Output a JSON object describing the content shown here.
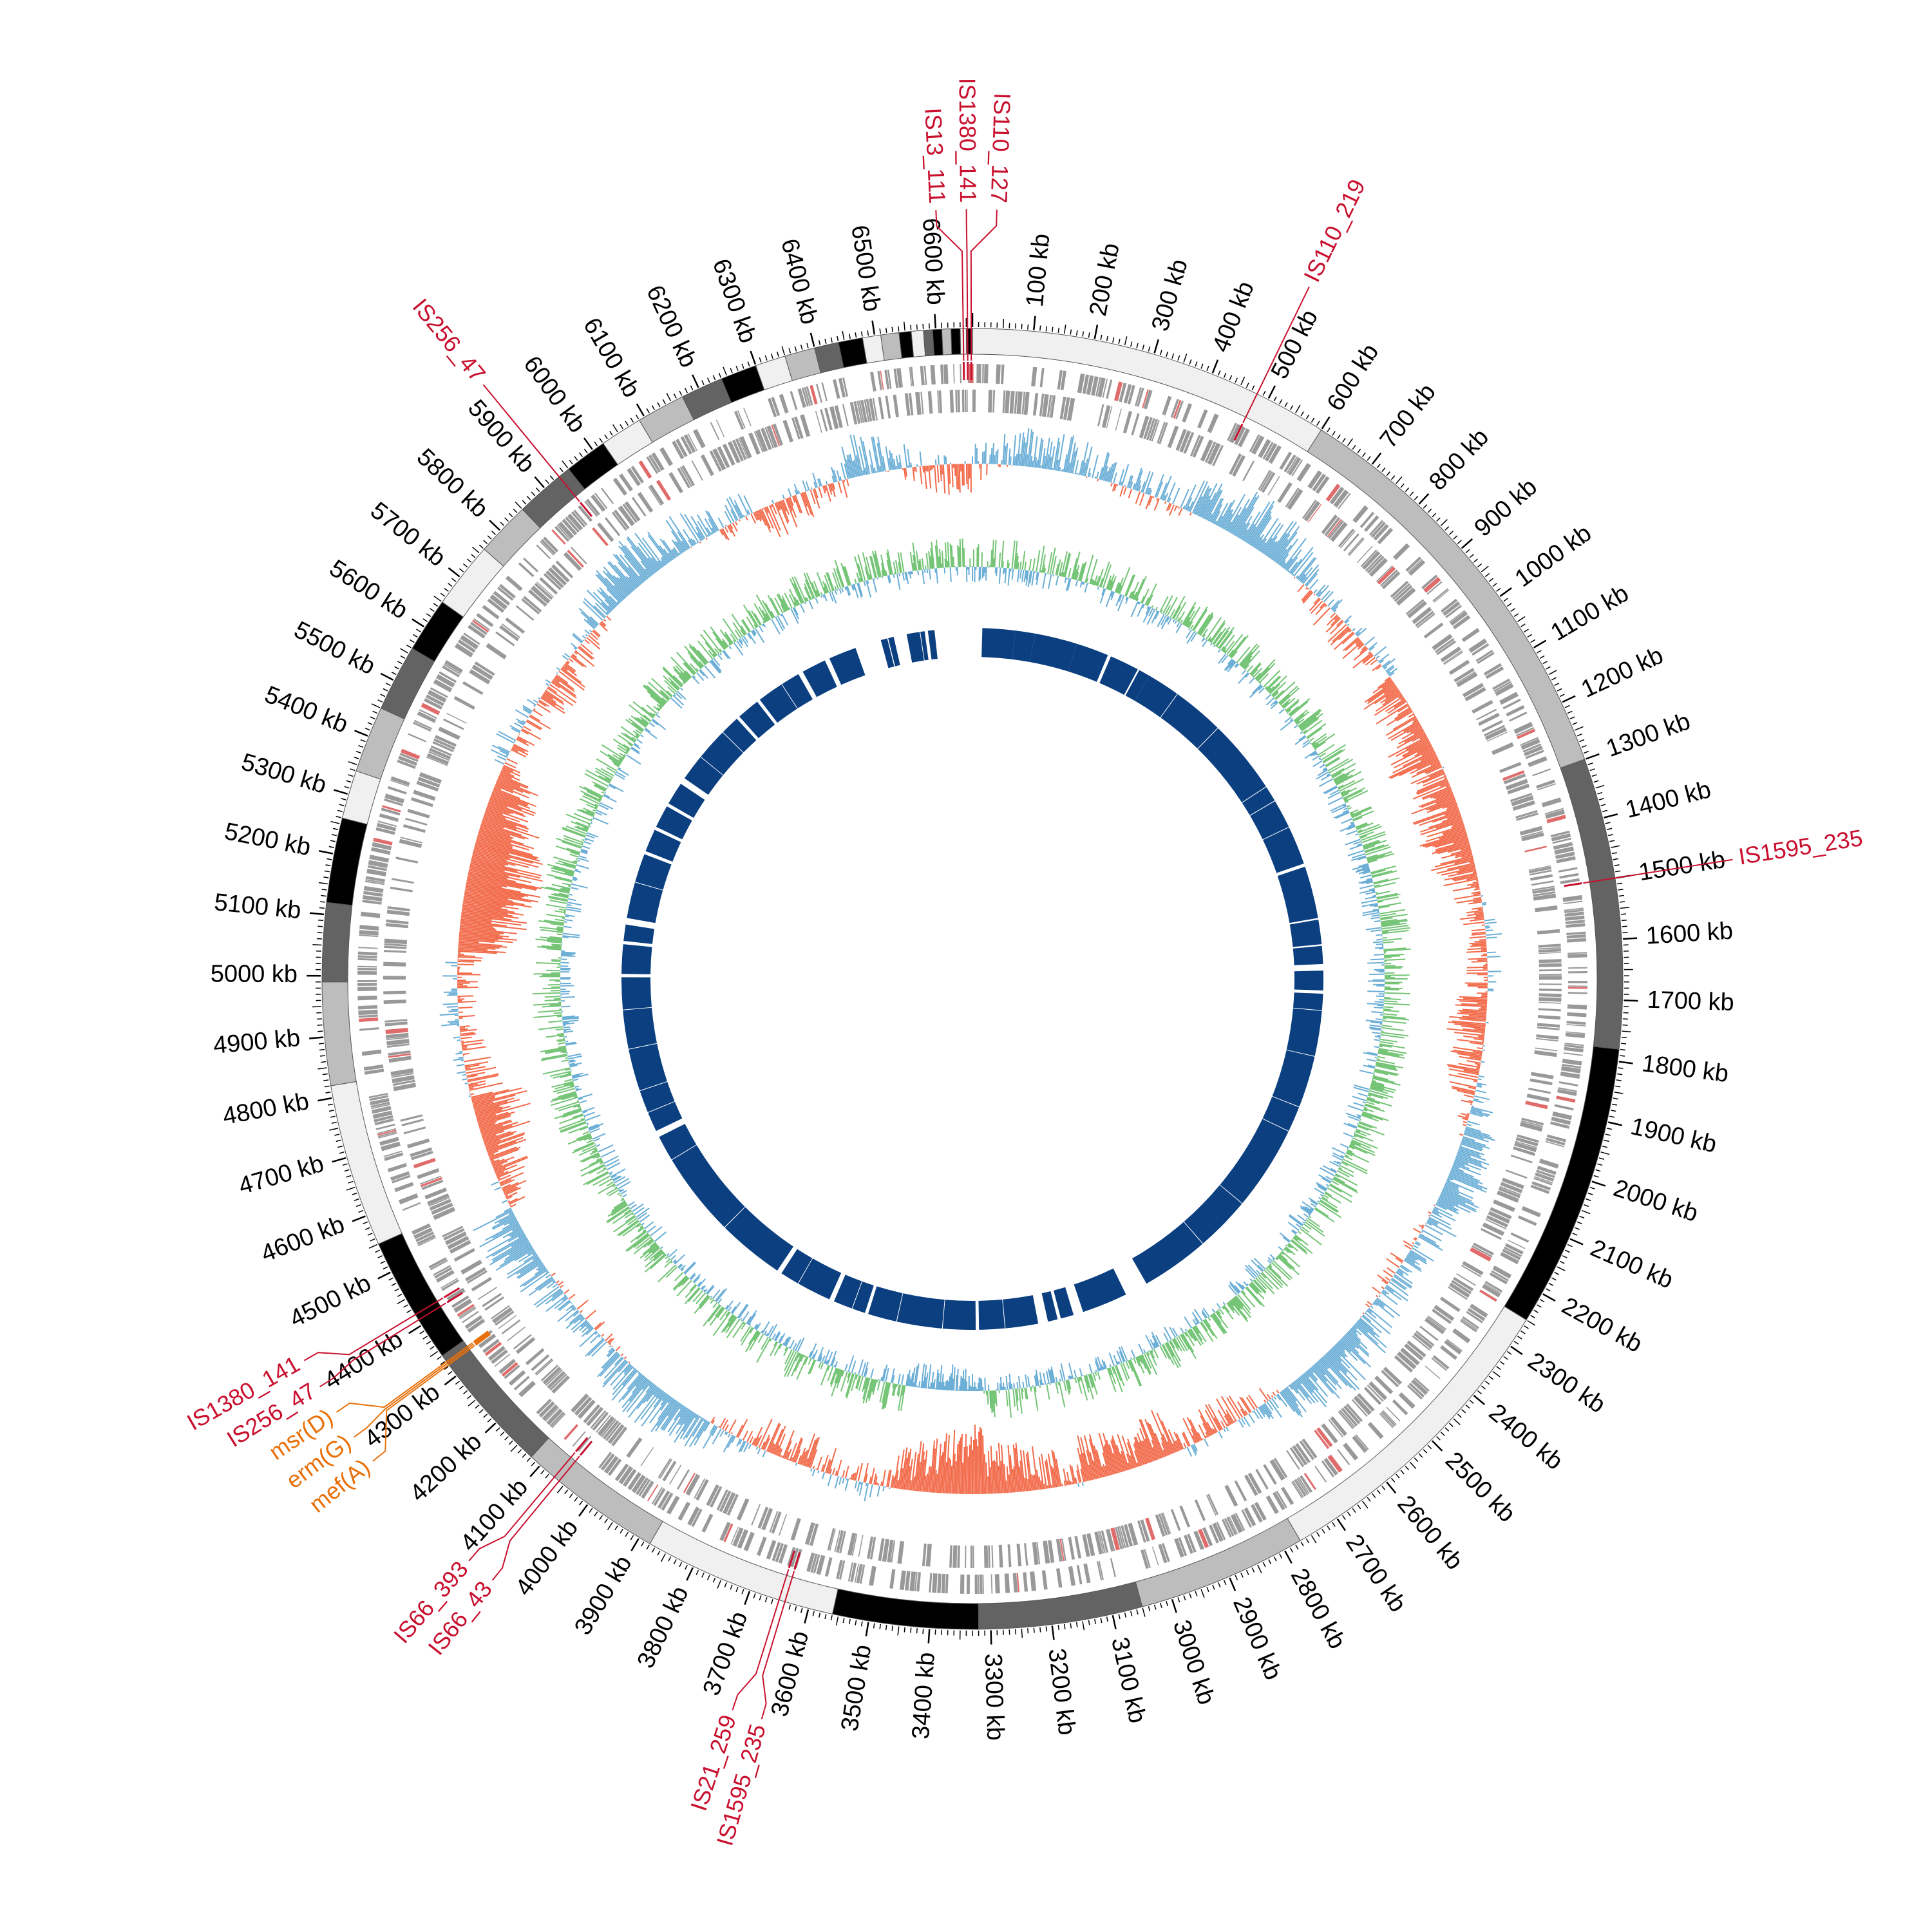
{
  "genome": {
    "length_kb": 6660,
    "tick_step_kb": 100,
    "tick_unit": "kb"
  },
  "colors": {
    "is_element": "#c8102e",
    "resistance_gene": "#e8700a",
    "gc_content_positive": "#6baed6",
    "gc_content_negative": "#f26a4a",
    "gc_skew_positive": "#74c476",
    "gc_skew_negative": "#6baed6",
    "homology_blocks": "#0b3f80",
    "cds_features": "#999999",
    "contig_shades": [
      "#f0f0f0",
      "#bdbdbd",
      "#636363",
      "#000000"
    ]
  },
  "contigs": [
    {
      "start": 0,
      "end": 600,
      "shade": 0
    },
    {
      "start": 600,
      "end": 1300,
      "shade": 1
    },
    {
      "start": 1300,
      "end": 1780,
      "shade": 2
    },
    {
      "start": 1780,
      "end": 2250,
      "shade": 3
    },
    {
      "start": 2250,
      "end": 2770,
      "shade": 0
    },
    {
      "start": 2770,
      "end": 3050,
      "shade": 1
    },
    {
      "start": 3050,
      "end": 3320,
      "shade": 2
    },
    {
      "start": 3320,
      "end": 3560,
      "shade": 3
    },
    {
      "start": 3560,
      "end": 3880,
      "shade": 0
    },
    {
      "start": 3880,
      "end": 4120,
      "shade": 1
    },
    {
      "start": 4120,
      "end": 4340,
      "shade": 2
    },
    {
      "start": 4340,
      "end": 4550,
      "shade": 3
    },
    {
      "start": 4550,
      "end": 4820,
      "shade": 0
    },
    {
      "start": 4820,
      "end": 4990,
      "shade": 1
    },
    {
      "start": 4990,
      "end": 5120,
      "shade": 2
    },
    {
      "start": 5120,
      "end": 5260,
      "shade": 3
    },
    {
      "start": 5260,
      "end": 5340,
      "shade": 0
    },
    {
      "start": 5340,
      "end": 5450,
      "shade": 1
    },
    {
      "start": 5450,
      "end": 5560,
      "shade": 2
    },
    {
      "start": 5560,
      "end": 5650,
      "shade": 3
    },
    {
      "start": 5650,
      "end": 5760,
      "shade": 0
    },
    {
      "start": 5760,
      "end": 5850,
      "shade": 1
    },
    {
      "start": 5850,
      "end": 5950,
      "shade": 2
    },
    {
      "start": 5950,
      "end": 6020,
      "shade": 3
    },
    {
      "start": 6020,
      "end": 6090,
      "shade": 0
    },
    {
      "start": 6090,
      "end": 6170,
      "shade": 1
    },
    {
      "start": 6170,
      "end": 6240,
      "shade": 2
    },
    {
      "start": 6240,
      "end": 6300,
      "shade": 3
    },
    {
      "start": 6300,
      "end": 6350,
      "shade": 0
    },
    {
      "start": 6350,
      "end": 6400,
      "shade": 1
    },
    {
      "start": 6400,
      "end": 6440,
      "shade": 2
    },
    {
      "start": 6440,
      "end": 6480,
      "shade": 3
    },
    {
      "start": 6480,
      "end": 6510,
      "shade": 0
    },
    {
      "start": 6510,
      "end": 6540,
      "shade": 1
    },
    {
      "start": 6540,
      "end": 6560,
      "shade": 3
    },
    {
      "start": 6560,
      "end": 6580,
      "shade": 0
    },
    {
      "start": 6580,
      "end": 6595,
      "shade": 2
    },
    {
      "start": 6595,
      "end": 6610,
      "shade": 3
    },
    {
      "start": 6610,
      "end": 6625,
      "shade": 1
    },
    {
      "start": 6625,
      "end": 6640,
      "shade": 3
    },
    {
      "start": 6640,
      "end": 6650,
      "shade": 0
    },
    {
      "start": 6650,
      "end": 6660,
      "shade": 3
    }
  ],
  "is_elements": [
    {
      "label": "IS13_111",
      "pos": 6645
    },
    {
      "label": "IS1380_141",
      "pos": 6652
    },
    {
      "label": "IS110_127",
      "pos": 6658
    },
    {
      "label": "IS110_219",
      "pos": 480
    },
    {
      "label": "IS1595_235",
      "pos": 1500
    },
    {
      "label": "IS21_259",
      "pos": 3650
    },
    {
      "label": "IS1595_235",
      "pos": 3640
    },
    {
      "label": "IS66_393",
      "pos": 4070
    },
    {
      "label": "IS66_43",
      "pos": 4060
    },
    {
      "label": "IS256_47",
      "pos": 4410
    },
    {
      "label": "IS1380_141",
      "pos": 4420
    },
    {
      "label": "IS256_47",
      "pos": 5930
    }
  ],
  "resistance_genes": [
    {
      "label": "msr(D)",
      "pos": 4328
    },
    {
      "label": "erm(G)",
      "pos": 4325
    },
    {
      "label": "mef(A)",
      "pos": 4322
    }
  ],
  "homology_blocks": [
    {
      "start": 30,
      "end": 130
    },
    {
      "start": 130,
      "end": 190
    },
    {
      "start": 190,
      "end": 320
    },
    {
      "start": 320,
      "end": 420
    },
    {
      "start": 430,
      "end": 520
    },
    {
      "start": 525,
      "end": 560
    },
    {
      "start": 560,
      "end": 660
    },
    {
      "start": 662,
      "end": 820
    },
    {
      "start": 822,
      "end": 1050
    },
    {
      "start": 1052,
      "end": 1100
    },
    {
      "start": 1102,
      "end": 1190
    },
    {
      "start": 1192,
      "end": 1310
    },
    {
      "start": 1320,
      "end": 1480
    },
    {
      "start": 1485,
      "end": 1560
    },
    {
      "start": 1565,
      "end": 1620
    },
    {
      "start": 1640,
      "end": 1700
    },
    {
      "start": 1710,
      "end": 1760
    },
    {
      "start": 1762,
      "end": 1900
    },
    {
      "start": 1902,
      "end": 2060
    },
    {
      "start": 2062,
      "end": 2140
    },
    {
      "start": 2142,
      "end": 2400
    },
    {
      "start": 2402,
      "end": 2570
    },
    {
      "start": 2572,
      "end": 2780
    },
    {
      "start": 2850,
      "end": 2990
    },
    {
      "start": 3020,
      "end": 3060
    },
    {
      "start": 3070,
      "end": 3100
    },
    {
      "start": 3130,
      "end": 3230
    },
    {
      "start": 3232,
      "end": 3310
    },
    {
      "start": 3320,
      "end": 3420
    },
    {
      "start": 3422,
      "end": 3560
    },
    {
      "start": 3562,
      "end": 3650
    },
    {
      "start": 3660,
      "end": 3700
    },
    {
      "start": 3702,
      "end": 3760
    },
    {
      "start": 3775,
      "end": 3880
    },
    {
      "start": 3882,
      "end": 3940
    },
    {
      "start": 3955,
      "end": 4160
    },
    {
      "start": 4162,
      "end": 4420
    },
    {
      "start": 4422,
      "end": 4500
    },
    {
      "start": 4520,
      "end": 4580
    },
    {
      "start": 4582,
      "end": 4650
    },
    {
      "start": 4652,
      "end": 4780
    },
    {
      "start": 4782,
      "end": 4900
    },
    {
      "start": 4902,
      "end": 5000
    },
    {
      "start": 5010,
      "end": 5100
    },
    {
      "start": 5110,
      "end": 5160
    },
    {
      "start": 5180,
      "end": 5290
    },
    {
      "start": 5292,
      "end": 5380
    },
    {
      "start": 5390,
      "end": 5460
    },
    {
      "start": 5470,
      "end": 5540
    },
    {
      "start": 5550,
      "end": 5620
    },
    {
      "start": 5640,
      "end": 5720
    },
    {
      "start": 5722,
      "end": 5820
    },
    {
      "start": 5822,
      "end": 5880
    },
    {
      "start": 5890,
      "end": 5960
    },
    {
      "start": 5970,
      "end": 6050
    },
    {
      "start": 6052,
      "end": 6110
    },
    {
      "start": 6125,
      "end": 6200
    },
    {
      "start": 6215,
      "end": 6300
    },
    {
      "start": 6380,
      "end": 6400
    },
    {
      "start": 6403,
      "end": 6420
    },
    {
      "start": 6460,
      "end": 6500
    },
    {
      "start": 6502,
      "end": 6515
    },
    {
      "start": 6525,
      "end": 6545
    }
  ]
}
